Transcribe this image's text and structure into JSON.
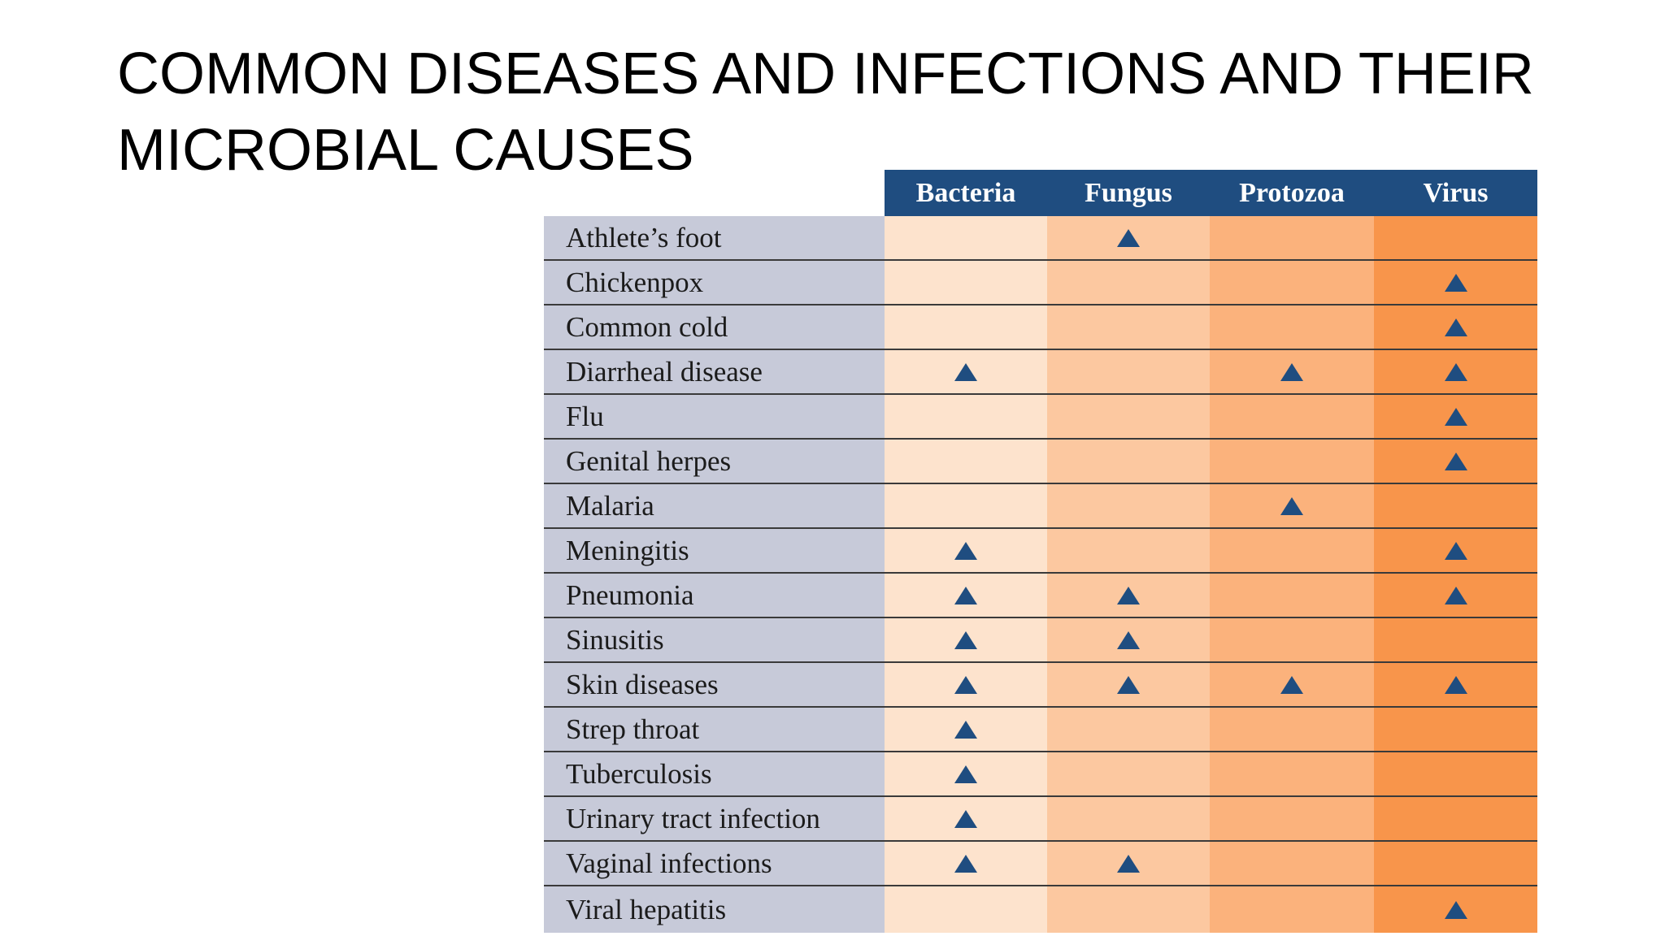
{
  "title": "COMMON DISEASES AND INFECTIONS AND THEIR MICROBIAL CAUSES",
  "table": {
    "columns": [
      "Bacteria",
      "Fungus",
      "Protozoa",
      "Virus"
    ],
    "marker_icon": "triangle-icon",
    "rows": [
      {
        "name": "Athlete’s foot",
        "marks": [
          false,
          true,
          false,
          false
        ]
      },
      {
        "name": "Chickenpox",
        "marks": [
          false,
          false,
          false,
          true
        ]
      },
      {
        "name": "Common cold",
        "marks": [
          false,
          false,
          false,
          true
        ]
      },
      {
        "name": "Diarrheal disease",
        "marks": [
          true,
          false,
          true,
          true
        ]
      },
      {
        "name": "Flu",
        "marks": [
          false,
          false,
          false,
          true
        ]
      },
      {
        "name": "Genital herpes",
        "marks": [
          false,
          false,
          false,
          true
        ]
      },
      {
        "name": "Malaria",
        "marks": [
          false,
          false,
          true,
          false
        ]
      },
      {
        "name": "Meningitis",
        "marks": [
          true,
          false,
          false,
          true
        ]
      },
      {
        "name": "Pneumonia",
        "marks": [
          true,
          true,
          false,
          true
        ]
      },
      {
        "name": "Sinusitis",
        "marks": [
          true,
          true,
          false,
          false
        ]
      },
      {
        "name": "Skin diseases",
        "marks": [
          true,
          true,
          true,
          true
        ]
      },
      {
        "name": "Strep throat",
        "marks": [
          true,
          false,
          false,
          false
        ]
      },
      {
        "name": "Tuberculosis",
        "marks": [
          true,
          false,
          false,
          false
        ]
      },
      {
        "name": "Urinary tract infection",
        "marks": [
          true,
          false,
          false,
          false
        ]
      },
      {
        "name": "Vaginal infections",
        "marks": [
          true,
          true,
          false,
          false
        ]
      },
      {
        "name": "Viral hepatitis",
        "marks": [
          false,
          false,
          false,
          true
        ]
      }
    ]
  },
  "colors": {
    "header_bg": "#1f4d80",
    "name_col_bg": "#c7cad9",
    "column_bgs": [
      "#fde3cd",
      "#fcc8a0",
      "#fbb27c",
      "#f8954b"
    ],
    "marker": "#1f4d80"
  }
}
